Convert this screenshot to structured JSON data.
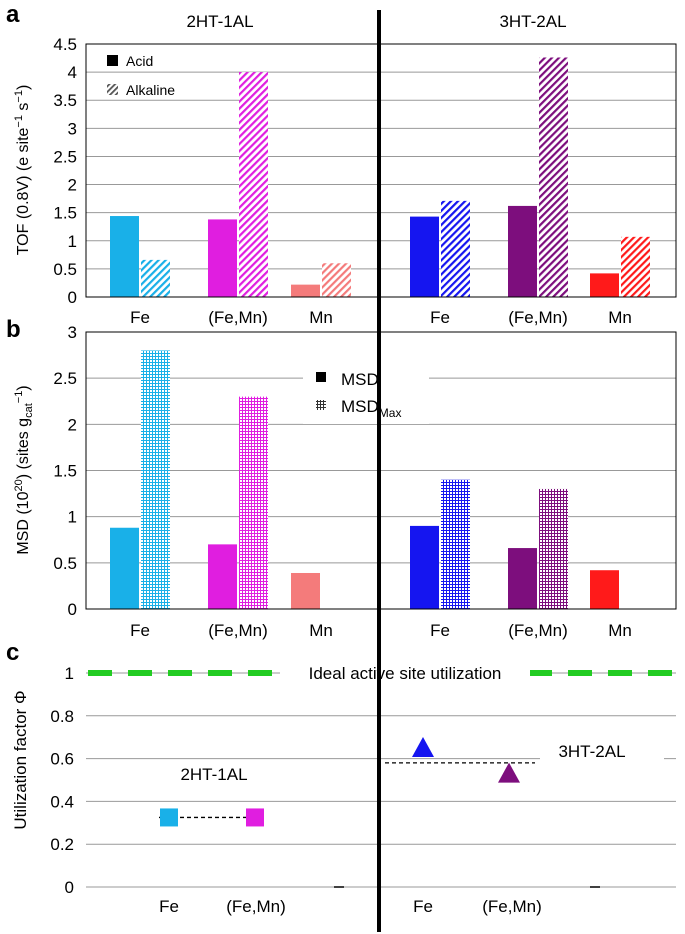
{
  "colors": {
    "fe_2ht": "#19b0e8",
    "femn_2ht": "#e01ee0",
    "mn_2ht": "#f47b7b",
    "fe_3ht": "#1515f0",
    "femn_3ht": "#7d0e7d",
    "mn_3ht": "#ff1a1a",
    "ideal": "#22cc22",
    "grid": "#999999",
    "axis": "#000000"
  },
  "chart_data": [
    {
      "panel": "a",
      "type": "bar",
      "panel_label": "a",
      "group_titles": [
        "2HT-1AL",
        "3HT-2AL"
      ],
      "ylabel": "TOF (0.8V) (e site",
      "ylabel_sup1": "−1",
      "ylabel_mid": " s",
      "ylabel_sup2": "−1",
      "ylabel_end": ")",
      "ylim": [
        0,
        4.5
      ],
      "yticks": [
        0,
        0.5,
        1,
        1.5,
        2,
        2.5,
        3,
        3.5,
        4,
        4.5
      ],
      "ytick_labels": [
        "0",
        "0.5",
        "1",
        "1.5",
        "2",
        "2.5",
        "3",
        "3.5",
        "4",
        "4.5"
      ],
      "categories": [
        "Fe",
        "(Fe,Mn)",
        "Mn",
        "Fe",
        "(Fe,Mn)",
        "Mn"
      ],
      "legend_position": "top-left",
      "series": [
        {
          "name": "Acid",
          "pattern": "solid",
          "values": [
            1.44,
            1.38,
            0.22,
            1.43,
            1.62,
            0.42
          ]
        },
        {
          "name": "Alkaline",
          "pattern": "hatch",
          "values": [
            0.66,
            4.0,
            0.6,
            1.71,
            4.26,
            1.07
          ]
        }
      ]
    },
    {
      "panel": "b",
      "type": "bar",
      "panel_label": "b",
      "ylabel": "MSD (10",
      "ylabel_sup1": "20",
      "ylabel_mid": ") (sites g",
      "ylabel_sub": "cat",
      "ylabel_sup2": "−1",
      "ylabel_end": ")",
      "ylim": [
        0,
        3
      ],
      "yticks": [
        0,
        0.5,
        1,
        1.5,
        2,
        2.5,
        3
      ],
      "ytick_labels": [
        "0",
        "0.5",
        "1",
        "1.5",
        "2",
        "2.5",
        "3"
      ],
      "categories": [
        "Fe",
        "(Fe,Mn)",
        "Mn",
        "Fe",
        "(Fe,Mn)",
        "Mn"
      ],
      "legend_position": "top-center",
      "series": [
        {
          "name": "MSD",
          "pattern": "solid",
          "values": [
            0.88,
            0.7,
            0.39,
            0.9,
            0.66,
            0.42
          ]
        },
        {
          "name": "MSD",
          "name_sub": "Max",
          "pattern": "grid",
          "values": [
            2.8,
            2.3,
            null,
            1.4,
            1.3,
            null
          ]
        }
      ]
    },
    {
      "panel": "c",
      "type": "scatter",
      "panel_label": "c",
      "ylabel": "Utilization factor Φ",
      "ylim": [
        0,
        1.1
      ],
      "yticks": [
        0,
        0.2,
        0.4,
        0.6,
        0.8,
        1
      ],
      "ytick_labels": [
        "0",
        "0.2",
        "0.4",
        "0.6",
        "0.8",
        "1"
      ],
      "categories": [
        "Fe",
        "(Fe,Mn)",
        "",
        "Fe",
        "(Fe,Mn)",
        ""
      ],
      "ideal": {
        "value": 1,
        "label": "Ideal active site utilization"
      },
      "groups": [
        {
          "name": "2HT-1AL",
          "marker": "square",
          "mean": 0.325,
          "points": [
            {
              "category": "Fe",
              "value": 0.325
            },
            {
              "category": "(Fe,Mn)",
              "value": 0.325
            }
          ]
        },
        {
          "name": "3HT-2AL",
          "marker": "triangle",
          "mean": 0.58,
          "points": [
            {
              "category": "Fe",
              "value": 0.645
            },
            {
              "category": "(Fe,Mn)",
              "value": 0.525
            }
          ]
        }
      ]
    }
  ]
}
